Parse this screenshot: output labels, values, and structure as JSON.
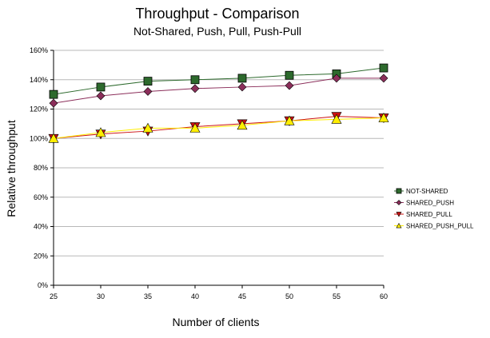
{
  "chart_data": {
    "type": "line",
    "title": "Throughput - Comparison",
    "subtitle": "Not-Shared, Push, Pull, Push-Pull",
    "xlabel": "Number of clients",
    "ylabel": "Relative throughput",
    "x": [
      25,
      30,
      35,
      40,
      45,
      50,
      55,
      60
    ],
    "ylim": [
      0,
      160
    ],
    "yticks": [
      "0%",
      "20%",
      "40%",
      "60%",
      "80%",
      "100%",
      "120%",
      "140%",
      "160%"
    ],
    "xticks": [
      "25",
      "30",
      "35",
      "40",
      "45",
      "50",
      "55",
      "60"
    ],
    "grid": true,
    "legend_position": "right",
    "series": [
      {
        "name": "NOT-SHARED",
        "values": [
          130,
          135,
          139,
          140,
          141,
          143,
          144,
          148
        ],
        "color": "#2d6a2d",
        "marker": "square"
      },
      {
        "name": "SHARED_PUSH",
        "values": [
          124,
          129,
          132,
          134,
          135,
          136,
          141,
          141
        ],
        "color": "#8b2e5a",
        "marker": "diamond"
      },
      {
        "name": "SHARED_PULL",
        "values": [
          100,
          103,
          105,
          108,
          110,
          112,
          115,
          114
        ],
        "color": "#cc1111",
        "marker": "triangle-down"
      },
      {
        "name": "SHARED_PUSH_PULL",
        "values": [
          100,
          104,
          107,
          107,
          109,
          112,
          113,
          114
        ],
        "color": "#ffee00",
        "marker": "triangle-up"
      }
    ]
  }
}
